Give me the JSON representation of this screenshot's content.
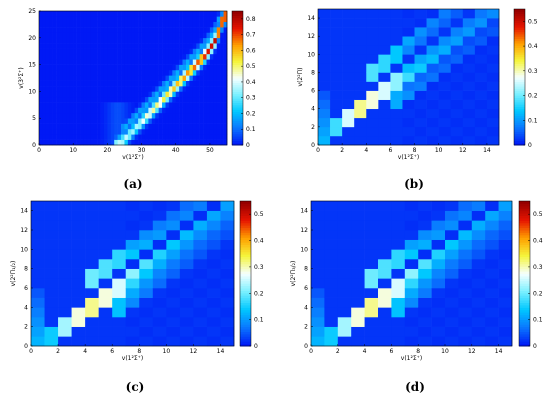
{
  "colors": {
    "background": "#ffffff",
    "colormap": [
      "#0019f5",
      "#0a78ff",
      "#00c8ff",
      "#7af0ff",
      "#f5ffff",
      "#f5f53c",
      "#ffa000",
      "#e61400",
      "#960000"
    ]
  },
  "chart_data": [
    {
      "type": "heatmap",
      "panel_label": "(a)",
      "xlabel": "v(1²Σ⁺)",
      "ylabel": "v(3²Σ⁺)",
      "xlim": [
        0,
        55
      ],
      "ylim": [
        0,
        25
      ],
      "xticks": [
        "0",
        "10",
        "20",
        "30",
        "40",
        "50"
      ],
      "yticks": [
        "0",
        "5",
        "10",
        "15",
        "20",
        "25"
      ],
      "colorbar_ticks": [
        "0",
        "0.1",
        "0.2",
        "0.3",
        "0.4",
        "0.5",
        "0.6",
        "0.7",
        "0.8"
      ],
      "colorbar_range": [
        0,
        0.85
      ],
      "ridge": {
        "description_values": "v(3²Σ⁺) bright diagonal band vs v(1²Σ⁺)",
        "x": [
          22,
          25,
          28,
          31,
          34,
          37,
          40,
          43,
          46,
          49,
          52,
          54
        ],
        "y": [
          0,
          1,
          3,
          5,
          7,
          9,
          11,
          13,
          15,
          17,
          20,
          24
        ],
        "peak_values": [
          0.35,
          0.4,
          0.35,
          0.45,
          0.5,
          0.55,
          0.6,
          0.65,
          0.7,
          0.75,
          0.8,
          0.85
        ]
      }
    },
    {
      "type": "heatmap",
      "panel_label": "(b)",
      "xlabel": "v(1²Σ⁺)",
      "ylabel": "v(2²Π)",
      "xlim": [
        0,
        15
      ],
      "ylim": [
        0,
        15
      ],
      "xticks": [
        "0",
        "2",
        "4",
        "6",
        "8",
        "10",
        "12",
        "14"
      ],
      "yticks": [
        "0",
        "2",
        "4",
        "6",
        "8",
        "10",
        "12",
        "14"
      ],
      "colorbar_ticks": [
        "0",
        "0.1",
        "0.2",
        "0.3",
        "0.4",
        "0.5"
      ],
      "colorbar_range": [
        0,
        0.55
      ],
      "diagonal_peaks": [
        0.12,
        0.3,
        0.45,
        0.55,
        0.5,
        0.45,
        0.38,
        0.3,
        0.25,
        0.22,
        0.2,
        0.18,
        0.17,
        0.16,
        0.15
      ]
    },
    {
      "type": "heatmap",
      "panel_label": "(c)",
      "xlabel": "v(1²Σ⁺)",
      "ylabel": "v(2²Π₁/₂)",
      "xlim": [
        0,
        15
      ],
      "ylim": [
        0,
        15
      ],
      "xticks": [
        "0",
        "2",
        "4",
        "6",
        "8",
        "10",
        "12",
        "14"
      ],
      "yticks": [
        "0",
        "2",
        "4",
        "6",
        "8",
        "10",
        "12",
        "14"
      ],
      "colorbar_ticks": [
        "0",
        "0.1",
        "0.2",
        "0.3",
        "0.4",
        "0.5"
      ],
      "colorbar_range": [
        0,
        0.55
      ],
      "diagonal_peaks": [
        0.12,
        0.25,
        0.4,
        0.5,
        0.55,
        0.5,
        0.45,
        0.38,
        0.32,
        0.27,
        0.24,
        0.22,
        0.2,
        0.19,
        0.18
      ]
    },
    {
      "type": "heatmap",
      "panel_label": "(d)",
      "xlabel": "v(1²Σ⁺)",
      "ylabel": "v(2²Π₃/₂)",
      "xlim": [
        0,
        15
      ],
      "ylim": [
        0,
        15
      ],
      "xticks": [
        "0",
        "2",
        "4",
        "6",
        "8",
        "10",
        "12",
        "14"
      ],
      "yticks": [
        "0",
        "2",
        "4",
        "6",
        "8",
        "10",
        "12",
        "14"
      ],
      "colorbar_ticks": [
        "0",
        "0.1",
        "0.2",
        "0.3",
        "0.4",
        "0.5"
      ],
      "colorbar_range": [
        0,
        0.55
      ],
      "diagonal_peaks": [
        0.12,
        0.25,
        0.4,
        0.5,
        0.55,
        0.5,
        0.45,
        0.38,
        0.32,
        0.27,
        0.24,
        0.22,
        0.2,
        0.19,
        0.18
      ]
    }
  ]
}
